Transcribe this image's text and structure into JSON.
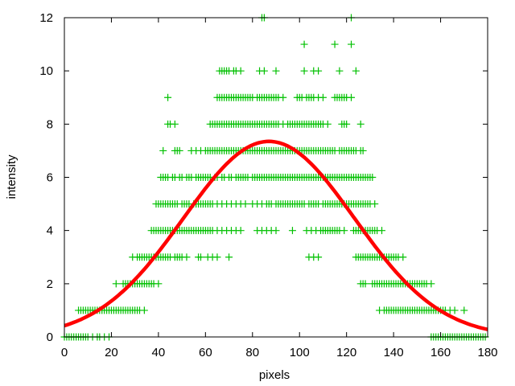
{
  "chart_data": {
    "type": "scatter",
    "title": "",
    "xlabel": "pixels",
    "ylabel": "intensity",
    "xlim": [
      0,
      180
    ],
    "ylim": [
      0,
      12
    ],
    "xticks": [
      0,
      20,
      40,
      60,
      80,
      100,
      120,
      140,
      160,
      180
    ],
    "yticks": [
      0,
      2,
      4,
      6,
      8,
      10,
      12
    ],
    "grid": false,
    "legend": "none",
    "colors": {
      "points": "#00c000",
      "fit": "#ff0000",
      "axes": "#000000"
    },
    "points_by_intensity": [
      {
        "y": 0,
        "x": [
          0,
          1,
          2,
          3,
          4,
          5,
          6,
          7,
          8,
          9,
          10,
          12,
          14,
          15,
          17,
          19,
          156,
          157,
          158,
          159,
          160,
          161,
          162,
          163,
          164,
          165,
          166,
          167,
          168,
          169,
          170,
          171,
          172,
          173,
          174,
          175,
          176,
          177,
          178,
          179
        ]
      },
      {
        "y": 1,
        "x": [
          6,
          7,
          8,
          9,
          10,
          11,
          12,
          13,
          14,
          15,
          16,
          17,
          18,
          19,
          20,
          21,
          22,
          23,
          24,
          25,
          26,
          27,
          28,
          29,
          30,
          31,
          32,
          34,
          134,
          136,
          137,
          138,
          139,
          140,
          141,
          142,
          143,
          144,
          145,
          146,
          147,
          148,
          149,
          150,
          151,
          152,
          153,
          154,
          155,
          156,
          157,
          158,
          159,
          160,
          161,
          162,
          164,
          166,
          170
        ]
      },
      {
        "y": 2,
        "x": [
          22,
          25,
          26,
          27,
          28,
          29,
          30,
          31,
          32,
          33,
          34,
          35,
          36,
          37,
          38,
          40,
          126,
          127,
          128,
          131,
          132,
          133,
          134,
          135,
          136,
          137,
          138,
          139,
          140,
          141,
          142,
          143,
          144,
          145,
          146,
          147,
          148,
          149,
          150,
          151,
          152,
          153,
          154,
          156
        ]
      },
      {
        "y": 3,
        "x": [
          29,
          31,
          32,
          33,
          34,
          35,
          36,
          37,
          38,
          39,
          40,
          41,
          42,
          43,
          44,
          45,
          47,
          48,
          49,
          50,
          52,
          57,
          58,
          61,
          63,
          65,
          70,
          104,
          106,
          108,
          124,
          125,
          126,
          127,
          128,
          129,
          130,
          131,
          132,
          133,
          134,
          135,
          136,
          137,
          138,
          139,
          140,
          141,
          142,
          144
        ]
      },
      {
        "y": 4,
        "x": [
          37,
          38,
          39,
          40,
          41,
          42,
          43,
          44,
          45,
          46,
          47,
          48,
          49,
          50,
          51,
          52,
          53,
          54,
          55,
          56,
          57,
          58,
          59,
          60,
          61,
          62,
          63,
          65,
          67,
          69,
          71,
          73,
          75,
          82,
          84,
          86,
          88,
          90,
          97,
          103,
          105,
          107,
          109,
          110,
          111,
          112,
          113,
          114,
          115,
          116,
          117,
          119,
          123,
          124,
          125,
          126,
          127,
          128,
          129,
          130,
          131,
          132,
          133,
          135
        ]
      },
      {
        "y": 5,
        "x": [
          39,
          40,
          41,
          42,
          43,
          44,
          45,
          46,
          47,
          48,
          50,
          51,
          52,
          53,
          55,
          56,
          57,
          58,
          59,
          60,
          61,
          62,
          63,
          65,
          67,
          69,
          71,
          73,
          75,
          77,
          80,
          82,
          84,
          86,
          87,
          88,
          90,
          91,
          92,
          93,
          94,
          95,
          96,
          97,
          98,
          99,
          100,
          101,
          102,
          104,
          105,
          106,
          107,
          108,
          110,
          111,
          112,
          113,
          114,
          115,
          116,
          117,
          118,
          119,
          120,
          121,
          122,
          123,
          124,
          125,
          126,
          127,
          128,
          129,
          130,
          132
        ]
      },
      {
        "y": 6,
        "x": [
          41,
          42,
          43,
          44,
          46,
          47,
          49,
          50,
          52,
          53,
          54,
          56,
          57,
          58,
          59,
          60,
          61,
          62,
          64,
          65,
          67,
          68,
          70,
          71,
          73,
          74,
          75,
          76,
          77,
          78,
          80,
          81,
          82,
          83,
          84,
          85,
          86,
          87,
          88,
          89,
          90,
          91,
          92,
          93,
          94,
          95,
          96,
          97,
          98,
          99,
          100,
          101,
          102,
          103,
          104,
          105,
          106,
          107,
          108,
          109,
          110,
          111,
          112,
          113,
          114,
          115,
          116,
          117,
          118,
          119,
          120,
          121,
          122,
          123,
          124,
          125,
          126,
          127,
          128,
          129,
          130,
          131
        ]
      },
      {
        "y": 7,
        "x": [
          42,
          47,
          48,
          49,
          54,
          56,
          58,
          60,
          61,
          62,
          63,
          64,
          65,
          66,
          67,
          68,
          69,
          70,
          71,
          72,
          73,
          74,
          75,
          76,
          77,
          78,
          79,
          80,
          81,
          82,
          83,
          84,
          85,
          86,
          87,
          88,
          89,
          90,
          91,
          92,
          93,
          94,
          95,
          96,
          97,
          98,
          99,
          100,
          101,
          102,
          103,
          104,
          105,
          106,
          107,
          108,
          109,
          110,
          111,
          112,
          113,
          114,
          115,
          117,
          118,
          119,
          120,
          121,
          122,
          123,
          124,
          126,
          127
        ]
      },
      {
        "y": 8,
        "x": [
          44,
          45,
          47,
          62,
          63,
          64,
          65,
          66,
          67,
          68,
          69,
          70,
          71,
          72,
          73,
          74,
          75,
          76,
          77,
          78,
          79,
          80,
          81,
          82,
          83,
          84,
          85,
          86,
          87,
          88,
          89,
          90,
          91,
          93,
          95,
          96,
          97,
          98,
          99,
          100,
          101,
          102,
          103,
          104,
          105,
          106,
          107,
          108,
          109,
          110,
          112,
          118,
          119,
          120,
          126
        ]
      },
      {
        "y": 9,
        "x": [
          44,
          65,
          66,
          67,
          68,
          69,
          70,
          71,
          72,
          73,
          74,
          75,
          76,
          77,
          78,
          79,
          80,
          82,
          83,
          84,
          85,
          86,
          87,
          88,
          89,
          90,
          91,
          93,
          99,
          100,
          101,
          103,
          104,
          105,
          106,
          108,
          110,
          115,
          116,
          117,
          118,
          119,
          120,
          122
        ]
      },
      {
        "y": 10,
        "x": [
          66,
          67,
          68,
          69,
          70,
          72,
          73,
          75,
          83,
          85,
          90,
          102,
          106,
          108,
          117,
          124
        ]
      },
      {
        "y": 11,
        "x": [
          102,
          115,
          122
        ]
      },
      {
        "y": 12,
        "x": [
          84,
          85,
          122
        ]
      }
    ],
    "fit_curve": {
      "type": "gaussian",
      "amplitude": 7.35,
      "center": 87,
      "sigma": 36.4
    }
  }
}
